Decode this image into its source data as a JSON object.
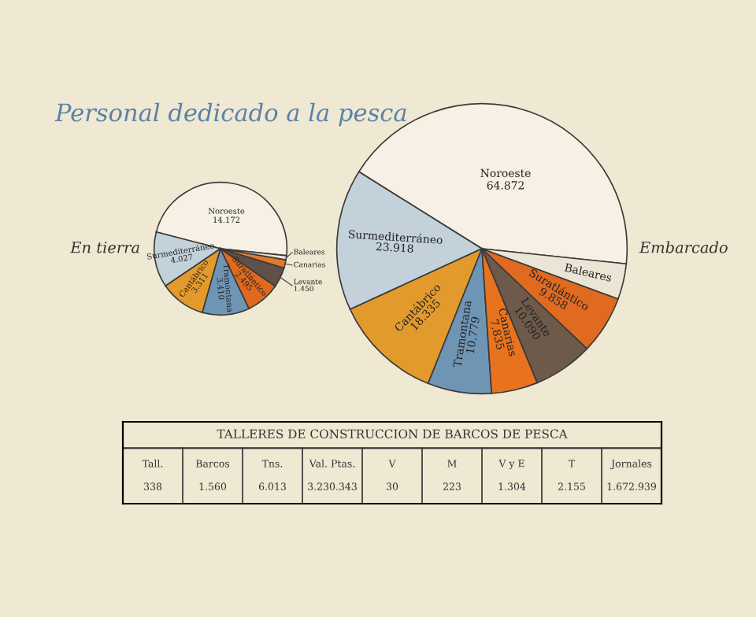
{
  "chart_data": [
    {
      "type": "pie",
      "title": "En tierra",
      "annotations": [
        "Personal dedicado a la pesca"
      ],
      "categories": [
        "Noroeste",
        "Surmediterráneo",
        "Cantábrico",
        "Tramontana",
        "Suratlántico",
        "Levante",
        "Canarias",
        "Baleares"
      ],
      "values": [
        14172,
        4027,
        3311,
        3410,
        2495,
        1450,
        600,
        300
      ],
      "value_labels": [
        "14.172",
        "4.027",
        "3.311",
        "3.410",
        "2.495",
        "1.450",
        null,
        null
      ],
      "colors": [
        "#f6f1e4",
        "#c3d2da",
        "#e39a2c",
        "#6f95b5",
        "#df6a1e",
        "#5f5048",
        "#e07a2a",
        "#ebe5d6"
      ]
    },
    {
      "type": "pie",
      "title": "Embarcado",
      "categories": [
        "Noroeste",
        "Surmediterráneo",
        "Cantábrico",
        "Tramontana",
        "Canarias",
        "Levante",
        "Suratlántico",
        "Baleares"
      ],
      "values": [
        64872,
        23918,
        18335,
        10779,
        7835,
        10090,
        9858,
        6000
      ],
      "value_labels": [
        "64.872",
        "23.918",
        "18.335",
        "10.779",
        "7.835",
        "10.090",
        "9.858",
        null
      ],
      "colors": [
        "#f6f1e4",
        "#c3d2da",
        "#e39a2c",
        "#6f95b5",
        "#e8731f",
        "#6e5a4a",
        "#e06a20",
        "#ebe5d6"
      ]
    },
    {
      "type": "other",
      "title": "TALLERES DE CONSTRUCCION DE BARCOS DE PESCA",
      "categories": [
        "Tall.",
        "Barcos",
        "Tns.",
        "Val. Ptas.",
        "V",
        "M",
        "V y E",
        "T",
        "Jornales"
      ],
      "value_labels": [
        "338",
        "1.560",
        "6.013",
        "3.230.343",
        "30",
        "223",
        "1.304",
        "2.155",
        "1.672.939"
      ]
    }
  ]
}
